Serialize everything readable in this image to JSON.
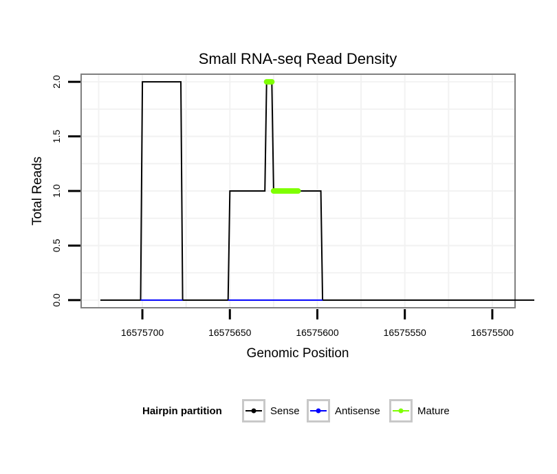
{
  "chart_data": {
    "type": "line",
    "title": "Small RNA-seq Read Density",
    "xlabel": "Genomic Position",
    "ylabel": "Total Reads",
    "xlim": [
      16575735,
      16575487
    ],
    "x_reversed": true,
    "ylim": [
      -0.07,
      2.07
    ],
    "x_ticks": [
      16575700,
      16575650,
      16575600,
      16575550,
      16575500
    ],
    "x_tick_labels": [
      "16575700",
      "16575650",
      "16575600",
      "16575550",
      "16575500"
    ],
    "y_ticks": [
      0.0,
      0.5,
      1.0,
      1.5,
      2.0
    ],
    "y_tick_labels": [
      "0.0",
      "0.5",
      "1.0",
      "1.5",
      "2.0"
    ],
    "grid": true,
    "legend": {
      "title": "Hairpin partition",
      "position": "bottom",
      "entries": [
        "Sense",
        "Antisense",
        "Mature"
      ]
    },
    "series": [
      {
        "name": "Sense",
        "color": "#000000",
        "x": [
          16575724,
          16575701,
          16575700,
          16575678,
          16575677,
          16575651,
          16575650,
          16575630,
          16575629,
          16575626,
          16575625,
          16575613,
          16575612,
          16575598,
          16575597,
          16575476
        ],
        "y": [
          0,
          0,
          2,
          2,
          0,
          0,
          1,
          1,
          2,
          2,
          1,
          1,
          1,
          1,
          0,
          0
        ]
      },
      {
        "name": "Antisense",
        "color": "#0000ff",
        "x": [
          16575701,
          16575677,
          16575651,
          16575597
        ],
        "y": [
          0,
          0,
          0,
          0
        ],
        "segments": [
          [
            0,
            1
          ],
          [
            2,
            3
          ]
        ]
      },
      {
        "name": "Mature",
        "color": "#7fff00",
        "x": [
          16575629,
          16575626,
          16575625,
          16575611
        ],
        "y": [
          2,
          2,
          1,
          1
        ],
        "segments": [
          [
            0,
            1
          ],
          [
            2,
            3
          ]
        ]
      }
    ]
  }
}
